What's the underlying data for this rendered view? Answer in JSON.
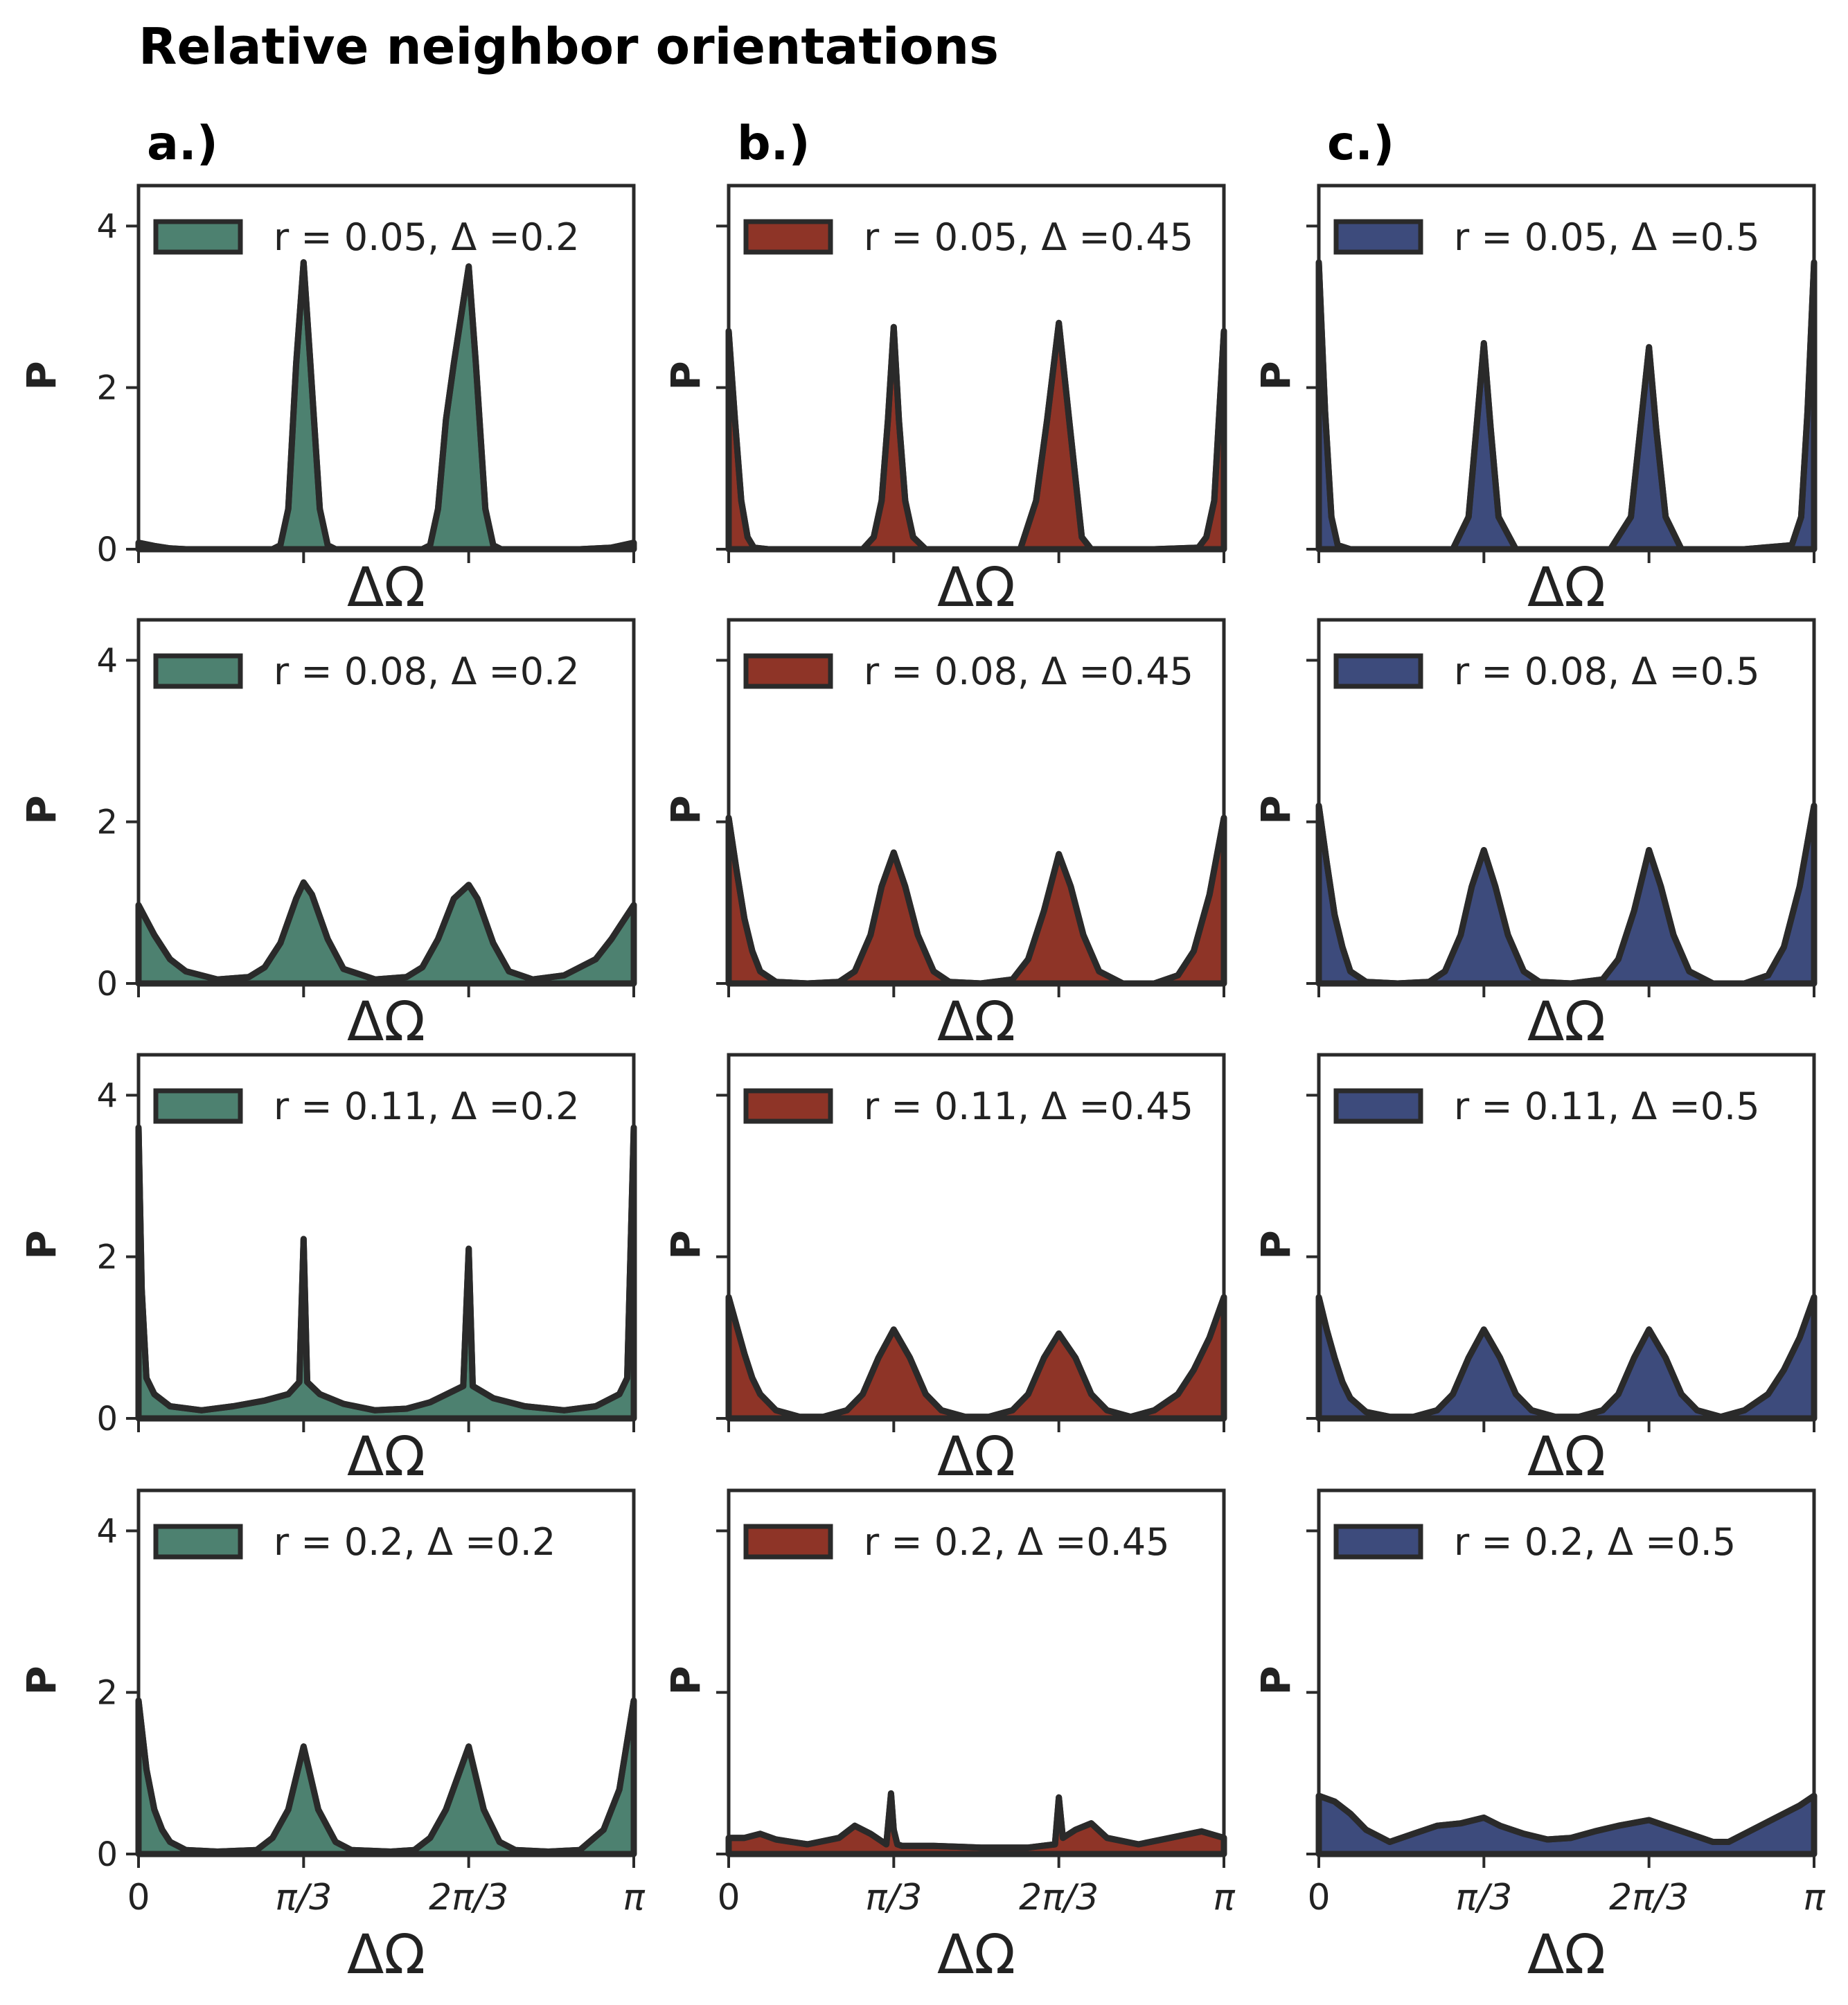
{
  "figure_title": "Relative neighbor orientations",
  "colors": {
    "a": "#4d8170",
    "b": "#8e3427",
    "c": "#3d4b7c",
    "outline": "#2a2a2a"
  },
  "chart_data": [
    {
      "type": "area",
      "column": "a",
      "row": 0,
      "panel_label": "a.)",
      "legend": "r = 0.05, Δ =0.2",
      "color": "#4d8170",
      "xlabel": "ΔΩ",
      "ylabel": "P",
      "xlim": [
        0,
        3.1416
      ],
      "ylim": [
        0,
        4.5
      ],
      "yticks": [
        0,
        2,
        4
      ],
      "ytick_labels": [
        "0",
        "2",
        "4"
      ],
      "xticks": [
        0,
        1.0472,
        2.0944,
        3.1416
      ],
      "xtick_labels": [],
      "x": [
        0,
        0.1,
        0.2,
        0.3,
        0.5,
        0.7,
        0.85,
        0.9,
        0.95,
        1.0,
        1.0472,
        1.09,
        1.15,
        1.2,
        1.25,
        1.4,
        1.6,
        1.8,
        1.85,
        1.9,
        1.95,
        2.0,
        2.0944,
        2.14,
        2.2,
        2.25,
        2.3,
        2.5,
        2.8,
        3.0,
        3.1416
      ],
      "y": [
        0.08,
        0.04,
        0.01,
        0.0,
        0.0,
        0.0,
        0.0,
        0.05,
        0.5,
        2.3,
        3.55,
        2.3,
        0.5,
        0.05,
        0.0,
        0.0,
        0.0,
        0.0,
        0.05,
        0.5,
        1.6,
        2.3,
        3.5,
        2.3,
        0.5,
        0.05,
        0.0,
        0.0,
        0.0,
        0.02,
        0.08
      ]
    },
    {
      "type": "area",
      "column": "a",
      "row": 1,
      "legend": "r = 0.08, Δ =0.2",
      "color": "#4d8170",
      "xlabel": "ΔΩ",
      "ylabel": "P",
      "xlim": [
        0,
        3.1416
      ],
      "ylim": [
        0,
        4.5
      ],
      "yticks": [
        0,
        2,
        4
      ],
      "ytick_labels": [
        "0",
        "2",
        "4"
      ],
      "xticks": [
        0,
        1.0472,
        2.0944,
        3.1416
      ],
      "xtick_labels": [],
      "x": [
        0,
        0.1,
        0.2,
        0.3,
        0.5,
        0.7,
        0.8,
        0.9,
        1.0,
        1.0472,
        1.1,
        1.2,
        1.3,
        1.5,
        1.7,
        1.8,
        1.9,
        2.0,
        2.0944,
        2.15,
        2.25,
        2.35,
        2.5,
        2.7,
        2.9,
        3.0,
        3.1416
      ],
      "y": [
        0.97,
        0.6,
        0.3,
        0.15,
        0.05,
        0.08,
        0.2,
        0.5,
        1.05,
        1.25,
        1.1,
        0.55,
        0.18,
        0.05,
        0.08,
        0.2,
        0.55,
        1.05,
        1.22,
        1.05,
        0.5,
        0.15,
        0.05,
        0.1,
        0.3,
        0.55,
        0.97
      ]
    },
    {
      "type": "area",
      "column": "a",
      "row": 2,
      "legend": "r = 0.11, Δ =0.2",
      "color": "#4d8170",
      "xlabel": "ΔΩ",
      "ylabel": "P",
      "xlim": [
        0,
        3.1416
      ],
      "ylim": [
        0,
        4.5
      ],
      "yticks": [
        0,
        2,
        4
      ],
      "ytick_labels": [
        "0",
        "2",
        "4"
      ],
      "xticks": [
        0,
        1.0472,
        2.0944,
        3.1416
      ],
      "xtick_labels": [],
      "x": [
        0,
        0.02,
        0.05,
        0.1,
        0.2,
        0.4,
        0.6,
        0.8,
        0.95,
        1.02,
        1.0472,
        1.07,
        1.15,
        1.3,
        1.5,
        1.7,
        1.85,
        2.06,
        2.0944,
        2.12,
        2.25,
        2.45,
        2.7,
        2.9,
        3.05,
        3.1,
        3.1416
      ],
      "y": [
        3.6,
        1.6,
        0.5,
        0.3,
        0.15,
        0.1,
        0.15,
        0.22,
        0.3,
        0.45,
        2.22,
        0.45,
        0.3,
        0.18,
        0.1,
        0.12,
        0.2,
        0.4,
        2.1,
        0.4,
        0.25,
        0.15,
        0.1,
        0.15,
        0.3,
        0.5,
        3.6
      ]
    },
    {
      "type": "area",
      "column": "a",
      "row": 3,
      "legend": "r = 0.2, Δ =0.2",
      "color": "#4d8170",
      "xlabel": "ΔΩ",
      "ylabel": "P",
      "xlim": [
        0,
        3.1416
      ],
      "ylim": [
        0,
        4.5
      ],
      "yticks": [
        0,
        2,
        4
      ],
      "ytick_labels": [
        "0",
        "2",
        "4"
      ],
      "xticks": [
        0,
        1.0472,
        2.0944,
        3.1416
      ],
      "xtick_labels": [
        "0",
        "π/3",
        "2π/3",
        "π"
      ],
      "x": [
        0,
        0.05,
        0.1,
        0.15,
        0.2,
        0.3,
        0.5,
        0.75,
        0.85,
        0.95,
        1.0472,
        1.14,
        1.25,
        1.35,
        1.6,
        1.75,
        1.85,
        1.95,
        2.0944,
        2.19,
        2.29,
        2.39,
        2.6,
        2.8,
        2.95,
        3.05,
        3.1416
      ],
      "y": [
        1.9,
        1.05,
        0.55,
        0.3,
        0.15,
        0.05,
        0.03,
        0.05,
        0.2,
        0.55,
        1.33,
        0.55,
        0.15,
        0.05,
        0.03,
        0.05,
        0.2,
        0.55,
        1.33,
        0.55,
        0.15,
        0.05,
        0.03,
        0.05,
        0.3,
        0.8,
        1.9
      ]
    },
    {
      "type": "area",
      "column": "b",
      "row": 0,
      "panel_label": "b.)",
      "legend": "r = 0.05, Δ =0.45",
      "color": "#8e3427",
      "xlabel": "ΔΩ",
      "ylabel": "P",
      "xlim": [
        0,
        3.1416
      ],
      "ylim": [
        0,
        4.5
      ],
      "yticks": [
        0,
        2,
        4
      ],
      "ytick_labels": [],
      "xticks": [
        0,
        1.0472,
        2.0944,
        3.1416
      ],
      "xtick_labels": [],
      "x": [
        0,
        0.04,
        0.08,
        0.12,
        0.16,
        0.25,
        0.5,
        0.85,
        0.92,
        0.97,
        1.01,
        1.0472,
        1.08,
        1.12,
        1.17,
        1.25,
        1.5,
        1.85,
        1.95,
        2.02,
        2.0944,
        2.16,
        2.24,
        2.3,
        2.7,
        2.98,
        3.03,
        3.08,
        3.1416
      ],
      "y": [
        2.7,
        1.6,
        0.6,
        0.15,
        0.02,
        0.0,
        0.0,
        0.0,
        0.15,
        0.6,
        1.6,
        2.75,
        1.6,
        0.6,
        0.15,
        0.0,
        0.0,
        0.0,
        0.6,
        1.6,
        2.8,
        1.6,
        0.15,
        0.0,
        0.0,
        0.02,
        0.15,
        0.6,
        2.7
      ]
    },
    {
      "type": "area",
      "column": "b",
      "row": 1,
      "legend": "r = 0.08, Δ =0.45",
      "color": "#8e3427",
      "xlabel": "ΔΩ",
      "ylabel": "P",
      "xlim": [
        0,
        3.1416
      ],
      "ylim": [
        0,
        4.5
      ],
      "yticks": [
        0,
        2,
        4
      ],
      "ytick_labels": [],
      "xticks": [
        0,
        1.0472,
        2.0944,
        3.1416
      ],
      "xtick_labels": [],
      "x": [
        0,
        0.05,
        0.1,
        0.15,
        0.2,
        0.3,
        0.5,
        0.7,
        0.8,
        0.9,
        0.97,
        1.0472,
        1.12,
        1.2,
        1.3,
        1.4,
        1.6,
        1.8,
        1.9,
        2.0,
        2.0944,
        2.17,
        2.25,
        2.35,
        2.5,
        2.7,
        2.85,
        2.95,
        3.05,
        3.1416
      ],
      "y": [
        2.05,
        1.4,
        0.8,
        0.4,
        0.15,
        0.02,
        0.0,
        0.02,
        0.15,
        0.6,
        1.2,
        1.62,
        1.2,
        0.6,
        0.15,
        0.02,
        0.0,
        0.05,
        0.3,
        0.9,
        1.6,
        1.2,
        0.6,
        0.15,
        0.0,
        0.0,
        0.1,
        0.4,
        1.1,
        2.05
      ]
    },
    {
      "type": "area",
      "column": "b",
      "row": 2,
      "legend": "r = 0.11, Δ =0.45",
      "color": "#8e3427",
      "xlabel": "ΔΩ",
      "ylabel": "P",
      "xlim": [
        0,
        3.1416
      ],
      "ylim": [
        0,
        4.5
      ],
      "yticks": [
        0,
        2,
        4
      ],
      "ytick_labels": [],
      "xticks": [
        0,
        1.0472,
        2.0944,
        3.1416
      ],
      "xtick_labels": [],
      "x": [
        0,
        0.05,
        0.1,
        0.15,
        0.2,
        0.3,
        0.45,
        0.6,
        0.75,
        0.85,
        0.95,
        1.0472,
        1.15,
        1.25,
        1.35,
        1.5,
        1.65,
        1.8,
        1.9,
        2.0,
        2.0944,
        2.2,
        2.3,
        2.4,
        2.55,
        2.7,
        2.85,
        2.95,
        3.05,
        3.1416
      ],
      "y": [
        1.5,
        1.15,
        0.8,
        0.5,
        0.3,
        0.1,
        0.02,
        0.02,
        0.1,
        0.3,
        0.75,
        1.1,
        0.75,
        0.3,
        0.1,
        0.02,
        0.02,
        0.1,
        0.3,
        0.75,
        1.05,
        0.75,
        0.3,
        0.1,
        0.02,
        0.1,
        0.3,
        0.6,
        1.0,
        1.5
      ]
    },
    {
      "type": "area",
      "column": "b",
      "row": 3,
      "legend": "r = 0.2, Δ =0.45",
      "color": "#8e3427",
      "xlabel": "ΔΩ",
      "ylabel": "P",
      "xlim": [
        0,
        3.1416
      ],
      "ylim": [
        0,
        4.5
      ],
      "yticks": [
        0,
        2,
        4
      ],
      "ytick_labels": [],
      "xticks": [
        0,
        1.0472,
        2.0944,
        3.1416
      ],
      "xtick_labels": [
        "0",
        "π/3",
        "2π/3",
        "π"
      ],
      "x": [
        0,
        0.1,
        0.2,
        0.3,
        0.5,
        0.7,
        0.8,
        0.9,
        1.0,
        1.03,
        1.0472,
        1.07,
        1.1,
        1.3,
        1.6,
        1.9,
        2.07,
        2.0944,
        2.12,
        2.2,
        2.3,
        2.4,
        2.6,
        2.8,
        3.0,
        3.1416
      ],
      "y": [
        0.2,
        0.2,
        0.25,
        0.18,
        0.12,
        0.2,
        0.35,
        0.25,
        0.12,
        0.75,
        0.3,
        0.12,
        0.1,
        0.1,
        0.08,
        0.08,
        0.12,
        0.7,
        0.2,
        0.3,
        0.38,
        0.2,
        0.12,
        0.2,
        0.28,
        0.2
      ]
    },
    {
      "type": "area",
      "column": "c",
      "row": 0,
      "panel_label": "c.)",
      "legend": "r = 0.05, Δ =0.5",
      "color": "#3d4b7c",
      "xlabel": "ΔΩ",
      "ylabel": "P",
      "xlim": [
        0,
        3.1416
      ],
      "ylim": [
        0,
        4.5
      ],
      "yticks": [
        0,
        2,
        4
      ],
      "ytick_labels": [],
      "xticks": [
        0,
        1.0472,
        2.0944,
        3.1416
      ],
      "xtick_labels": [],
      "x": [
        0,
        0.04,
        0.08,
        0.12,
        0.2,
        0.5,
        0.85,
        0.95,
        1.0,
        1.0472,
        1.09,
        1.14,
        1.25,
        1.5,
        1.85,
        1.98,
        2.04,
        2.0944,
        2.14,
        2.2,
        2.3,
        2.7,
        3.0,
        3.06,
        3.1,
        3.1416
      ],
      "y": [
        3.55,
        1.7,
        0.4,
        0.05,
        0.0,
        0.0,
        0.0,
        0.4,
        1.5,
        2.55,
        1.5,
        0.4,
        0.0,
        0.0,
        0.0,
        0.4,
        1.5,
        2.5,
        1.5,
        0.4,
        0.0,
        0.0,
        0.05,
        0.4,
        1.7,
        3.55
      ]
    },
    {
      "type": "area",
      "column": "c",
      "row": 1,
      "legend": "r = 0.08, Δ =0.5",
      "color": "#3d4b7c",
      "xlabel": "ΔΩ",
      "ylabel": "P",
      "xlim": [
        0,
        3.1416
      ],
      "ylim": [
        0,
        4.5
      ],
      "yticks": [
        0,
        2,
        4
      ],
      "ytick_labels": [],
      "xticks": [
        0,
        1.0472,
        2.0944,
        3.1416
      ],
      "xtick_labels": [],
      "x": [
        0,
        0.05,
        0.1,
        0.15,
        0.2,
        0.3,
        0.5,
        0.7,
        0.8,
        0.9,
        0.97,
        1.0472,
        1.12,
        1.2,
        1.3,
        1.4,
        1.6,
        1.8,
        1.9,
        2.0,
        2.0944,
        2.17,
        2.25,
        2.35,
        2.5,
        2.7,
        2.85,
        2.95,
        3.05,
        3.1416
      ],
      "y": [
        2.2,
        1.5,
        0.85,
        0.45,
        0.15,
        0.02,
        0.0,
        0.02,
        0.15,
        0.6,
        1.2,
        1.65,
        1.2,
        0.6,
        0.15,
        0.02,
        0.0,
        0.05,
        0.3,
        0.9,
        1.65,
        1.2,
        0.6,
        0.15,
        0.0,
        0.0,
        0.1,
        0.45,
        1.2,
        2.2
      ]
    },
    {
      "type": "area",
      "column": "c",
      "row": 2,
      "legend": "r = 0.11, Δ =0.5",
      "color": "#3d4b7c",
      "xlabel": "ΔΩ",
      "ylabel": "P",
      "xlim": [
        0,
        3.1416
      ],
      "ylim": [
        0,
        4.5
      ],
      "yticks": [
        0,
        2,
        4
      ],
      "ytick_labels": [],
      "xticks": [
        0,
        1.0472,
        2.0944,
        3.1416
      ],
      "xtick_labels": [],
      "x": [
        0,
        0.05,
        0.1,
        0.15,
        0.2,
        0.3,
        0.45,
        0.6,
        0.75,
        0.85,
        0.95,
        1.0472,
        1.15,
        1.25,
        1.35,
        1.5,
        1.65,
        1.8,
        1.9,
        2.0,
        2.0944,
        2.2,
        2.3,
        2.4,
        2.55,
        2.7,
        2.85,
        2.95,
        3.05,
        3.1416
      ],
      "y": [
        1.5,
        1.1,
        0.75,
        0.45,
        0.25,
        0.08,
        0.02,
        0.02,
        0.1,
        0.3,
        0.75,
        1.1,
        0.75,
        0.3,
        0.1,
        0.02,
        0.02,
        0.1,
        0.3,
        0.75,
        1.1,
        0.75,
        0.3,
        0.1,
        0.02,
        0.1,
        0.3,
        0.6,
        1.0,
        1.5
      ]
    },
    {
      "type": "area",
      "column": "c",
      "row": 3,
      "legend": "r = 0.2, Δ =0.5",
      "color": "#3d4b7c",
      "xlabel": "ΔΩ",
      "ylabel": "P",
      "xlim": [
        0,
        3.1416
      ],
      "ylim": [
        0,
        4.5
      ],
      "yticks": [
        0,
        2,
        4
      ],
      "ytick_labels": [],
      "xticks": [
        0,
        1.0472,
        2.0944,
        3.1416
      ],
      "xtick_labels": [
        "0",
        "π/3",
        "2π/3",
        "π"
      ],
      "x": [
        0,
        0.1,
        0.2,
        0.3,
        0.45,
        0.6,
        0.75,
        0.9,
        1.0472,
        1.15,
        1.3,
        1.45,
        1.6,
        1.75,
        1.9,
        2.0944,
        2.2,
        2.35,
        2.5,
        2.6,
        2.75,
        2.9,
        3.05,
        3.1416
      ],
      "y": [
        0.72,
        0.65,
        0.5,
        0.3,
        0.15,
        0.25,
        0.35,
        0.38,
        0.45,
        0.35,
        0.25,
        0.18,
        0.2,
        0.28,
        0.35,
        0.42,
        0.35,
        0.25,
        0.15,
        0.15,
        0.3,
        0.45,
        0.6,
        0.72
      ]
    }
  ]
}
